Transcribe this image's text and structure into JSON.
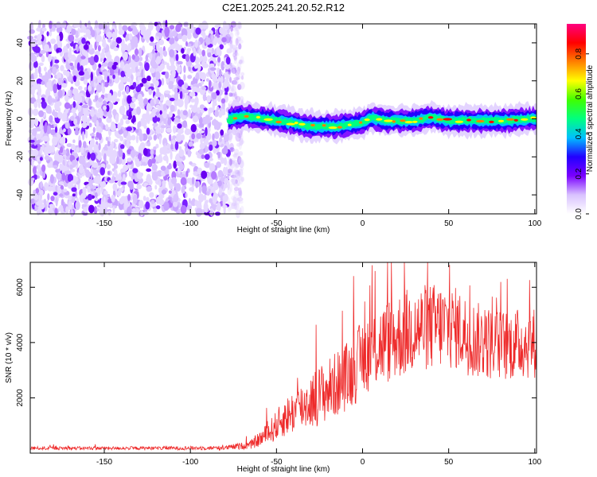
{
  "title": "C2E1.2025.241.20.52.R12",
  "chart_data": [
    {
      "type": "heatmap",
      "name": "spectrogram",
      "xlabel": "Height of straight line (km)",
      "ylabel": "Frequency (Hz)",
      "xlim": [
        -193,
        101
      ],
      "ylim": [
        -50,
        50
      ],
      "xticks": [
        -150,
        -100,
        -50,
        0,
        50,
        100
      ],
      "yticks": [
        -40,
        -20,
        0,
        20,
        40
      ],
      "noise_region_x": [
        -193,
        -78
      ],
      "signal_start_x": -78,
      "signal_centerline": [
        {
          "x": -78,
          "y": 0
        },
        {
          "x": -70,
          "y": 1.5
        },
        {
          "x": -60,
          "y": 0.5
        },
        {
          "x": -45,
          "y": -1.5
        },
        {
          "x": -30,
          "y": -4
        },
        {
          "x": -15,
          "y": -4
        },
        {
          "x": 0,
          "y": -2
        },
        {
          "x": 5,
          "y": 0.5
        },
        {
          "x": 15,
          "y": -1
        },
        {
          "x": 30,
          "y": -1
        },
        {
          "x": 40,
          "y": 1
        },
        {
          "x": 50,
          "y": -1
        },
        {
          "x": 60,
          "y": -1
        },
        {
          "x": 80,
          "y": -1
        },
        {
          "x": 100,
          "y": 0
        }
      ],
      "colorbar": {
        "label": "Normalized spectral amplitude",
        "range": [
          0,
          0.95
        ],
        "ticks": [
          "0.0",
          "0.2",
          "0.4",
          "0.6",
          "0.8"
        ],
        "tick_values": [
          0.0,
          0.2,
          0.4,
          0.6,
          0.8
        ],
        "colors": [
          "#ffffff",
          "#d9c2ff",
          "#7a00ff",
          "#2200ff",
          "#00bfff",
          "#00ff80",
          "#40ff00",
          "#ffff00",
          "#ff8000",
          "#ff0000",
          "#ff0080"
        ]
      }
    },
    {
      "type": "line",
      "name": "snr",
      "xlabel": "Height of straight line (km)",
      "ylabel": "SNR (10 * v/v)",
      "xlim": [
        -193,
        101
      ],
      "ylim": [
        0,
        6900
      ],
      "xticks": [
        -150,
        -100,
        -50,
        0,
        50,
        100
      ],
      "yticks": [
        2000,
        4000,
        6000
      ],
      "color": "#ee2a2a",
      "envelope": [
        {
          "x": -193,
          "mean": 180,
          "spread": 60
        },
        {
          "x": -120,
          "mean": 180,
          "spread": 60
        },
        {
          "x": -80,
          "mean": 190,
          "spread": 80
        },
        {
          "x": -65,
          "mean": 300,
          "spread": 150
        },
        {
          "x": -55,
          "mean": 700,
          "spread": 400
        },
        {
          "x": -45,
          "mean": 1300,
          "spread": 700
        },
        {
          "x": -35,
          "mean": 1700,
          "spread": 900
        },
        {
          "x": -25,
          "mean": 2100,
          "spread": 1100
        },
        {
          "x": -15,
          "mean": 2500,
          "spread": 1200
        },
        {
          "x": -5,
          "mean": 3000,
          "spread": 1300
        },
        {
          "x": 0,
          "mean": 3500,
          "spread": 1400
        },
        {
          "x": 10,
          "mean": 3900,
          "spread": 1500
        },
        {
          "x": 20,
          "mean": 4200,
          "spread": 1600
        },
        {
          "x": 30,
          "mean": 4500,
          "spread": 1600
        },
        {
          "x": 45,
          "mean": 4600,
          "spread": 1600
        },
        {
          "x": 55,
          "mean": 4500,
          "spread": 1500
        },
        {
          "x": 65,
          "mean": 4100,
          "spread": 1400
        },
        {
          "x": 80,
          "mean": 3900,
          "spread": 1300
        },
        {
          "x": 101,
          "mean": 4000,
          "spread": 1300
        }
      ]
    }
  ]
}
